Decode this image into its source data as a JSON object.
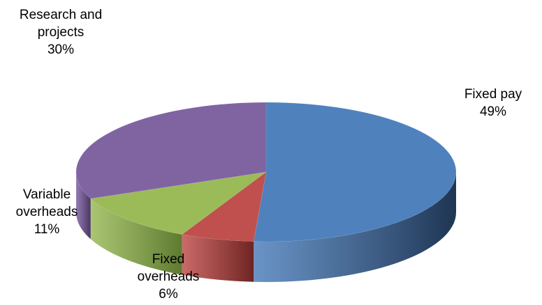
{
  "chart_data": {
    "type": "pie",
    "three_d": true,
    "title": "",
    "legend": "none",
    "slices": [
      {
        "name": "Fixed pay",
        "value": 49,
        "label_pct": "49%",
        "color": "#4F81BD",
        "side_color": "#1F3553"
      },
      {
        "name": "Fixed overheads",
        "value": 6,
        "label_pct": "6%",
        "color": "#C0504D",
        "side_color": "#6E2422"
      },
      {
        "name": "Variable overheads",
        "value": 11,
        "label_pct": "11%",
        "color": "#9BBB59",
        "side_color": "#5E7A30"
      },
      {
        "name": "Research and projects",
        "value": 30,
        "label_pct": "30%",
        "color": "#8064A2",
        "side_color": "#4A3563"
      }
    ]
  }
}
